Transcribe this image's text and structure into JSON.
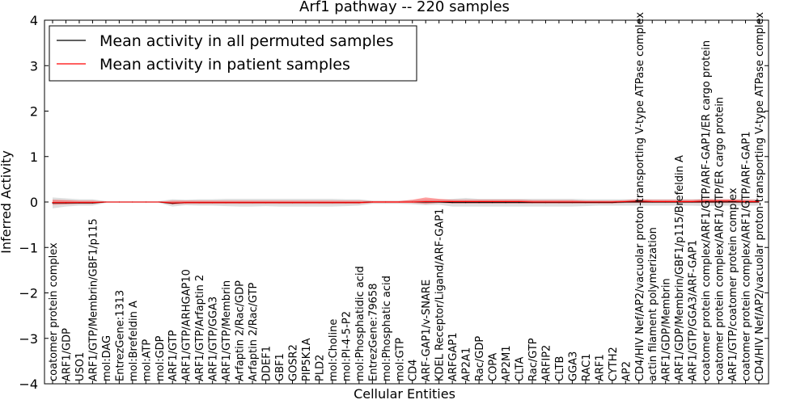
{
  "chart_data": {
    "type": "line",
    "title": "Arf1 pathway -- 220 samples",
    "xlabel": "Cellular Entities",
    "ylabel": "Inferred Activity",
    "ylim": [
      -4,
      4
    ],
    "yticks": [
      -4,
      -3,
      -2,
      -1,
      0,
      1,
      2,
      3,
      4
    ],
    "ytick_labels": [
      "−4",
      "−3",
      "−2",
      "−1",
      "0",
      "1",
      "2",
      "3",
      "4"
    ],
    "grid": false,
    "legend_position": "top-left",
    "categories": [
      "coatomer protein complex",
      "ARF1/GDP",
      "USO1",
      "ARF1/GTP/Membrin/GBF1/p115",
      "mol:DAG",
      "EntrezGene:1313",
      "mol:Brefeldin A",
      "mol:ATP",
      "mol:GDP",
      "ARF1/GTP",
      "ARF1/GTP/ARHGAP10",
      "ARF1/GTP/Arfaptin 2",
      "ARF1/GTP/GGA3",
      "ARF1/GTP/Membrin",
      "Arfaptin 2/Rac/GDP",
      "Arfaptin 2/Rac/GTP",
      "DDEF1",
      "GBF1",
      "GOSR2",
      "PIP5K1A",
      "PLD2",
      "mol:Choline",
      "mol:PI-4-5-P2",
      "mol:Phosphatidic acid",
      "EntrezGene:79658",
      "mol:Phosphatic acid",
      "mol:GTP",
      "CD4",
      "ARF-GAP1/v-SNARE",
      "KDEL Receptor/Ligand/ARF-GAP1",
      "ARFGAP1",
      "AP2A1",
      "Rac/GDP",
      "COPA",
      "AP2M1",
      "CLTA",
      "Rac/GTP",
      "ARFIP2",
      "CLTB",
      "GGA3",
      "RAC1",
      "ARF1",
      "CYTH2",
      "AP2",
      "CD4/HIV Nef/AP2/vacuolar proton-transporting V-type ATPase complex",
      "actin filament polymerization",
      "ARF1/GDP/Membrin",
      "ARF1/GDP/Membrin/GBF1/p115/Brefeldin A",
      "ARF1/GTP/GGA3/ARF-GAP1",
      "coatomer protein complex/ARF1/GTP/ARF-GAP1/ER cargo protein",
      "coatomer protein complex/ARF1/GTP/ER cargo protein",
      "ARF1/GTP/coatomer protein complex",
      "coatomer protein complex/ARF1/GTP/ARF-GAP1",
      "CD4/HIV Nef/AP2/vacuolar proton-transporting V-type ATPase complex"
    ],
    "series": [
      {
        "name": "Mean activity in all permuted samples",
        "color": "#000000",
        "values": [
          -0.02,
          -0.02,
          -0.02,
          -0.02,
          0.0,
          0.0,
          0.0,
          0.0,
          0.0,
          -0.03,
          -0.01,
          -0.01,
          -0.01,
          -0.01,
          -0.01,
          -0.01,
          -0.01,
          -0.01,
          -0.01,
          -0.01,
          -0.01,
          -0.01,
          -0.01,
          -0.01,
          0.0,
          0.0,
          0.0,
          0.0,
          0.0,
          0.0,
          -0.01,
          -0.01,
          -0.01,
          -0.01,
          -0.01,
          -0.01,
          -0.01,
          -0.01,
          -0.01,
          -0.01,
          -0.01,
          -0.01,
          -0.01,
          0.0,
          0.0,
          0.0,
          0.0,
          0.0,
          0.0,
          0.0,
          0.0,
          0.0,
          0.0,
          0.0
        ],
        "band_low": [
          -0.14,
          -0.1,
          -0.08,
          -0.08,
          -0.02,
          -0.02,
          -0.02,
          -0.02,
          -0.02,
          -0.1,
          -0.07,
          -0.08,
          -0.08,
          -0.09,
          -0.1,
          -0.1,
          -0.09,
          -0.1,
          -0.1,
          -0.1,
          -0.1,
          -0.1,
          -0.09,
          -0.08,
          -0.04,
          -0.04,
          -0.04,
          -0.05,
          -0.07,
          -0.06,
          -0.1,
          -0.1,
          -0.1,
          -0.1,
          -0.1,
          -0.1,
          -0.1,
          -0.1,
          -0.1,
          -0.1,
          -0.09,
          -0.08,
          -0.08,
          -0.08,
          -0.08,
          -0.08,
          -0.08,
          -0.08,
          -0.08,
          -0.09,
          -0.08,
          -0.08,
          -0.08,
          -0.08
        ],
        "band_high": [
          0.1,
          0.08,
          0.06,
          0.06,
          0.02,
          0.02,
          0.02,
          0.02,
          0.02,
          0.06,
          0.05,
          0.06,
          0.06,
          0.07,
          0.07,
          0.07,
          0.07,
          0.07,
          0.07,
          0.07,
          0.07,
          0.07,
          0.06,
          0.06,
          0.03,
          0.03,
          0.03,
          0.04,
          0.05,
          0.05,
          0.07,
          0.09,
          0.07,
          0.07,
          0.07,
          0.07,
          0.07,
          0.07,
          0.07,
          0.07,
          0.06,
          0.06,
          0.06,
          0.06,
          0.06,
          0.06,
          0.06,
          0.06,
          0.06,
          0.07,
          0.06,
          0.06,
          0.06,
          0.06
        ]
      },
      {
        "name": "Mean activity in patient samples",
        "color": "#ff0000",
        "values": [
          -0.01,
          -0.01,
          -0.01,
          -0.01,
          0.0,
          0.0,
          0.0,
          0.0,
          0.0,
          -0.02,
          -0.01,
          -0.01,
          -0.01,
          -0.01,
          -0.01,
          -0.01,
          -0.01,
          -0.01,
          -0.01,
          -0.01,
          -0.01,
          -0.01,
          -0.01,
          -0.01,
          0.0,
          0.0,
          0.0,
          0.0,
          0.01,
          0.01,
          0.01,
          0.01,
          0.01,
          0.01,
          0.01,
          0.01,
          0.0,
          0.0,
          0.0,
          0.0,
          0.0,
          0.0,
          0.0,
          0.01,
          0.02,
          0.01,
          0.01,
          0.01,
          0.01,
          0.02,
          0.02,
          0.02,
          0.01,
          0.01
        ],
        "band_low": [
          -0.06,
          -0.05,
          -0.04,
          -0.04,
          -0.01,
          -0.01,
          -0.01,
          -0.01,
          -0.01,
          -0.05,
          -0.04,
          -0.04,
          -0.04,
          -0.04,
          -0.04,
          -0.04,
          -0.04,
          -0.04,
          -0.04,
          -0.04,
          -0.04,
          -0.04,
          -0.04,
          -0.04,
          -0.02,
          -0.02,
          -0.02,
          -0.02,
          -0.04,
          -0.02,
          -0.03,
          -0.03,
          -0.03,
          -0.03,
          -0.03,
          -0.03,
          -0.03,
          -0.03,
          -0.03,
          -0.03,
          -0.03,
          -0.03,
          -0.03,
          -0.02,
          -0.02,
          -0.02,
          -0.02,
          -0.02,
          -0.02,
          -0.02,
          -0.02,
          -0.02,
          -0.02,
          -0.02
        ],
        "band_high": [
          0.05,
          0.04,
          0.03,
          0.03,
          0.01,
          0.01,
          0.01,
          0.01,
          0.01,
          0.03,
          0.03,
          0.03,
          0.03,
          0.03,
          0.03,
          0.03,
          0.03,
          0.03,
          0.03,
          0.03,
          0.03,
          0.03,
          0.03,
          0.03,
          0.02,
          0.02,
          0.02,
          0.05,
          0.1,
          0.07,
          0.05,
          0.05,
          0.05,
          0.05,
          0.05,
          0.05,
          0.04,
          0.04,
          0.04,
          0.04,
          0.03,
          0.03,
          0.03,
          0.04,
          0.06,
          0.05,
          0.05,
          0.05,
          0.05,
          0.06,
          0.06,
          0.06,
          0.05,
          0.05
        ]
      }
    ]
  }
}
